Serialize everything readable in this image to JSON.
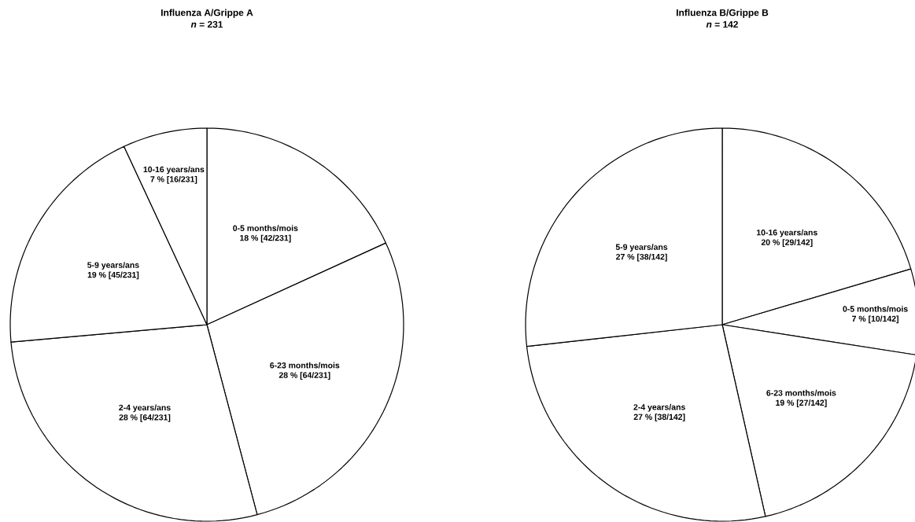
{
  "chart_data": [
    {
      "type": "pie",
      "title": "Influenza A/Grippe A",
      "subtitle": "*n* = 231",
      "categories": [
        "0-5 months/mois",
        "6-23 months/mois",
        "2-4 years/ans",
        "5-9 years/ans",
        "10-16 years/ans"
      ],
      "values": [
        42,
        64,
        64,
        45,
        16
      ],
      "value_labels": [
        "18 % [42/231]",
        "28 % [64/231]",
        "28 % [64/231]",
        "19 % [45/231]",
        "7 % [16/231]"
      ],
      "colors": [
        "#ffffff",
        "#ffffff",
        "#ffffff",
        "#ffffff",
        "#ffffff"
      ]
    },
    {
      "type": "pie",
      "title": "Influenza B/Grippe B",
      "subtitle": "*n* = 142",
      "categories": [
        "10-16 years/ans",
        "0-5 months/mois",
        "6-23 months/mois",
        "2-4 years/ans",
        "5-9 years/ans"
      ],
      "values": [
        29,
        10,
        27,
        38,
        38
      ],
      "value_labels": [
        "20 % [29/142]",
        "7 % [10/142]",
        "19 % [27/142]",
        "27 % [38/142]",
        "27 % [38/142]"
      ],
      "colors": [
        "#ffffff",
        "#ffffff",
        "#ffffff",
        "#ffffff",
        "#ffffff"
      ]
    }
  ]
}
